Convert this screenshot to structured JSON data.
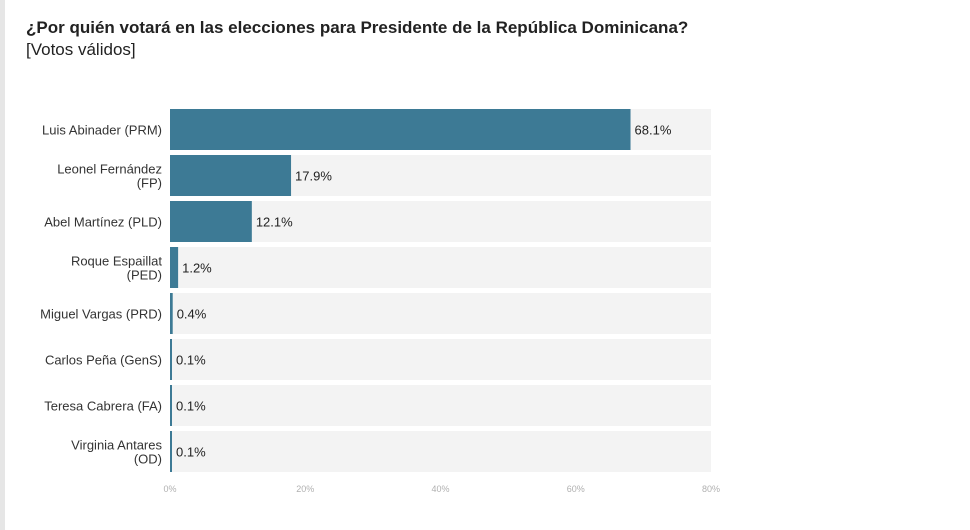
{
  "title": "¿Por quién votará en las elecciones para Presidente de la República Dominicana?",
  "subtitle": "[Votos válidos]",
  "colors": {
    "bar": "#3d7a95",
    "track": "#f3f3f3"
  },
  "chart_data": {
    "type": "bar",
    "orientation": "horizontal",
    "title": "¿Por quién votará en las elecciones para Presidente de la República Dominicana?",
    "subtitle": "[Votos válidos]",
    "categories": [
      [
        "Luis Abinader (PRM)"
      ],
      [
        "Leonel Fernández",
        "(FP)"
      ],
      [
        "Abel Martínez (PLD)"
      ],
      [
        "Roque Espaillat",
        "(PED)"
      ],
      [
        "Miguel Vargas (PRD)"
      ],
      [
        "Carlos Peña (GenS)"
      ],
      [
        "Teresa Cabrera (FA)"
      ],
      [
        "Virginia Antares",
        "(OD)"
      ]
    ],
    "values": [
      68.1,
      17.9,
      12.1,
      1.2,
      0.4,
      0.1,
      0.1,
      0.1
    ],
    "value_labels": [
      "68.1%",
      "17.9%",
      "12.1%",
      "1.2%",
      "0.4%",
      "0.1%",
      "0.1%",
      "0.1%"
    ],
    "xlim": [
      0,
      80
    ],
    "xticks": [
      0,
      20,
      40,
      60,
      80
    ],
    "xtick_labels": [
      "0%",
      "20%",
      "40%",
      "60%",
      "80%"
    ],
    "grid": false
  }
}
